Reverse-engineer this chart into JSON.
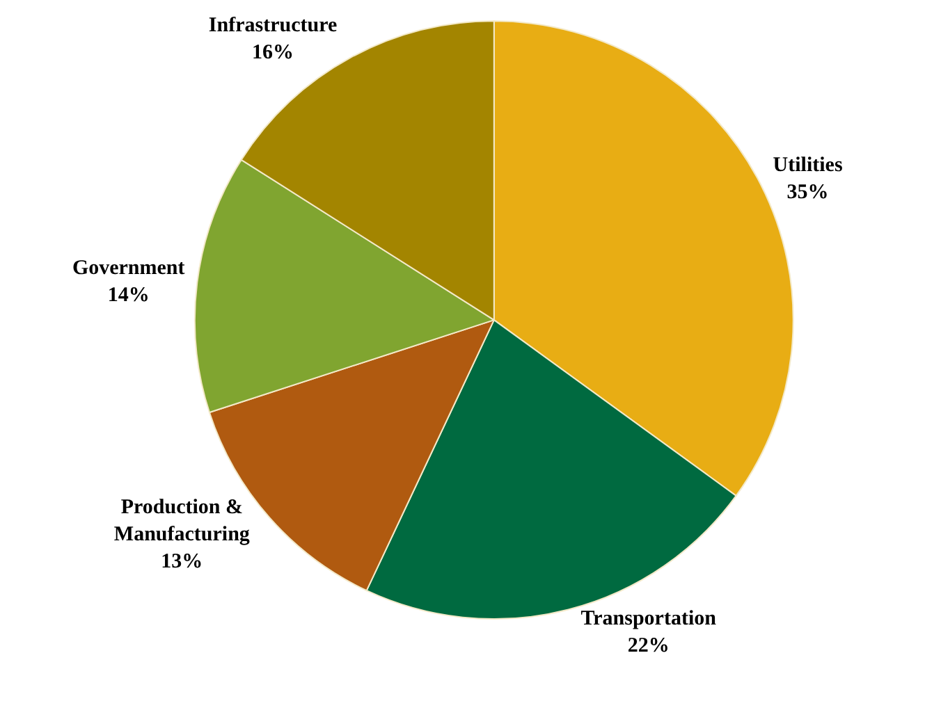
{
  "chart_data": {
    "type": "pie",
    "categories": [
      "Utilities",
      "Transportation",
      "Production &\nManufacturing",
      "Government",
      "Infrastructure"
    ],
    "values": [
      35,
      22,
      13,
      14,
      16
    ],
    "value_labels": [
      "35%",
      "22%",
      "13%",
      "14%",
      "16%"
    ],
    "colors": [
      "#e8ad14",
      "#006a40",
      "#b05a10",
      "#80a530",
      "#a38500"
    ],
    "legend": false
  }
}
